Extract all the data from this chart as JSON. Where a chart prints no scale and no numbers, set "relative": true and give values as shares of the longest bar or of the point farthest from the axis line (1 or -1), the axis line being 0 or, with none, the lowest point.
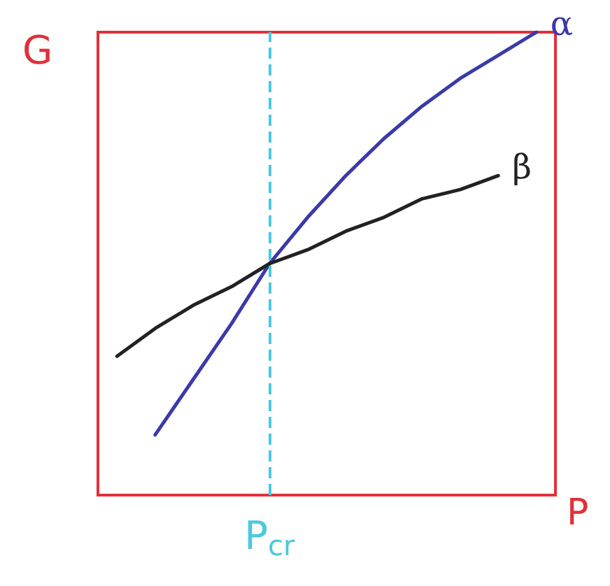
{
  "chart_data": {
    "type": "line",
    "relative": true,
    "ylabel": "G",
    "xlabel": "P",
    "categories": [
      null,
      null,
      null,
      null,
      null,
      null,
      null,
      null,
      null,
      null,
      null,
      null
    ],
    "series": [
      {
        "name": "α",
        "color": "#3a3aa8",
        "values": [
          null,
          0.13,
          0.25,
          0.37,
          0.5,
          0.6,
          0.69,
          0.77,
          0.84,
          0.9,
          0.95,
          1
        ]
      },
      {
        "name": "β",
        "color": "#222222",
        "values": [
          0.3,
          0.36,
          0.41,
          0.45,
          0.5,
          0.53,
          0.57,
          0.6,
          0.64,
          0.66,
          0.69,
          null
        ]
      }
    ],
    "annotations": [
      "P$_{cr}$"
    ],
    "marker": "none",
    "line_style": "solid",
    "legend": false,
    "grid": false
  }
}
